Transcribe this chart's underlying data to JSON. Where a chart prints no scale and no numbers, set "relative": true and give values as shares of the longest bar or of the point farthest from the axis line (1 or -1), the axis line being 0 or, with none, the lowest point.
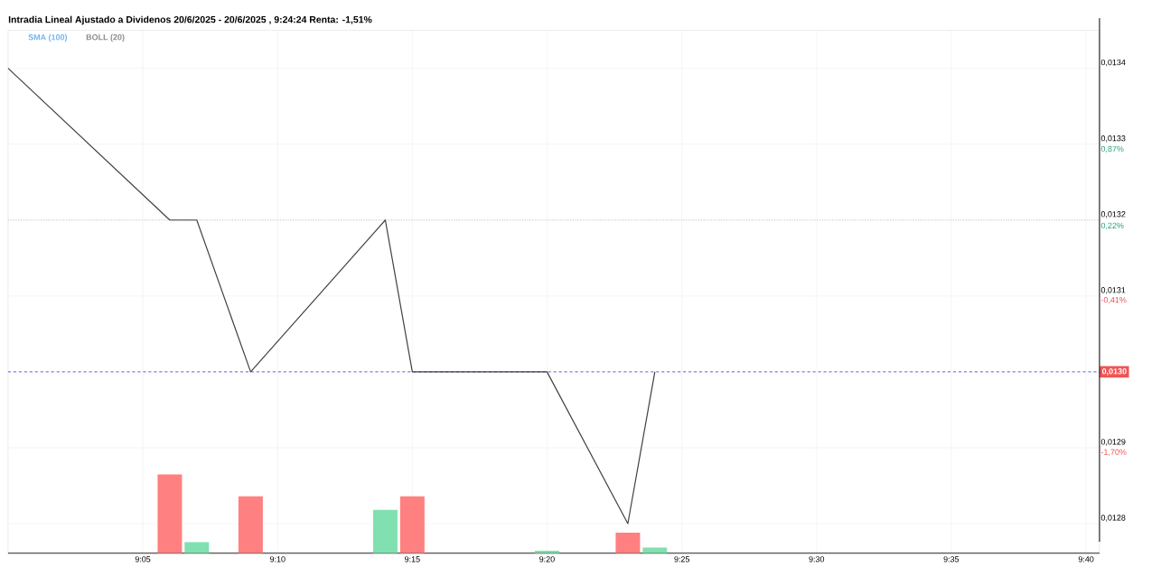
{
  "chart_data": [
    {
      "type": "line",
      "title": "Intradia Lineal Ajustado a Dividenos 20/6/2025 - 20/6/2025 , 9:24:24 Renta: -1,51%",
      "annotations": [
        "SMA (100)",
        "BOLL (20)"
      ],
      "x": [
        9.0,
        9.1,
        9.1167,
        9.15,
        9.2333,
        9.25,
        9.3333,
        9.3833,
        9.4
      ],
      "series": [
        {
          "color": "#404040",
          "values": [
            0.0134,
            0.0132,
            0.0132,
            0.013,
            0.0132,
            0.013,
            0.013,
            0.0128,
            0.013
          ]
        }
      ],
      "xlim": [
        9.0,
        9.675
      ],
      "xticks": [
        {
          "value": 9.0833,
          "label": null
        },
        {
          "value": 9.1667,
          "label": null
        },
        {
          "value": 9.25,
          "label": null
        },
        {
          "value": 9.3333,
          "label": null
        },
        {
          "value": 9.4167,
          "label": null
        },
        {
          "value": 9.5,
          "label": null
        },
        {
          "value": 9.5833,
          "label": null
        },
        {
          "value": 9.6667,
          "label": null
        }
      ],
      "ylim": [
        0.01276,
        0.01345
      ],
      "yticks": [
        {
          "value": 0.0128,
          "label": "0,0128"
        },
        {
          "value": 0.0129,
          "label": "0,0129"
        },
        {
          "value": 0.013,
          "label": null
        },
        {
          "value": 0.0131,
          "label": "0,0131"
        },
        {
          "value": 0.0132,
          "label": "0,0132"
        },
        {
          "value": 0.0133,
          "label": "0,0133"
        },
        {
          "value": 0.0134,
          "label": "0,0134"
        }
      ],
      "y2lim": [
        -2.61,
        1.83
      ],
      "y2ticks": [
        {
          "value": -1.7,
          "label": "-1,70%"
        },
        {
          "value": -0.41,
          "label": "-0,41%"
        },
        {
          "value": 0.22,
          "label": "0,22%"
        },
        {
          "value": 0.87,
          "label": "0,87%"
        }
      ],
      "ref_lines": [
        {
          "axis": "y",
          "value": 0.013,
          "label": "0,0130",
          "color": "#3333ff",
          "line_style": "dashed"
        },
        {
          "axis": "y",
          "value": 0.0132,
          "color": "#aaaaaa",
          "line_style": "dotted"
        }
      ],
      "grid": true,
      "tick_labels": "y",
      "marker": "none",
      "line_style": "solid"
    },
    {
      "type": "bar",
      "relative": true,
      "x": [
        9.1,
        9.1167,
        9.15,
        9.2333,
        9.25,
        9.3333,
        9.3833,
        9.4
      ],
      "values": [
        1,
        0.14,
        0.72,
        0.55,
        0.72,
        0.03,
        0.26,
        0.07
      ],
      "colors": [
        "#ff8080",
        "#80e0b0",
        "#ff8080",
        "#80e0b0",
        "#ff8080",
        "#80e0b0",
        "#ff8080",
        "#80e0b0"
      ],
      "xlim": [
        9.0,
        9.675
      ],
      "xticks": [
        {
          "value": 9.0833,
          "label": "9:05"
        },
        {
          "value": 9.1667,
          "label": "9:10"
        },
        {
          "value": 9.25,
          "label": "9:15"
        },
        {
          "value": 9.3333,
          "label": "9:20"
        },
        {
          "value": 9.4167,
          "label": "9:25"
        },
        {
          "value": 9.5,
          "label": "9:30"
        },
        {
          "value": 9.5833,
          "label": "9:35"
        },
        {
          "value": 9.6667,
          "label": "9:40"
        }
      ],
      "tick_labels": "x"
    }
  ]
}
